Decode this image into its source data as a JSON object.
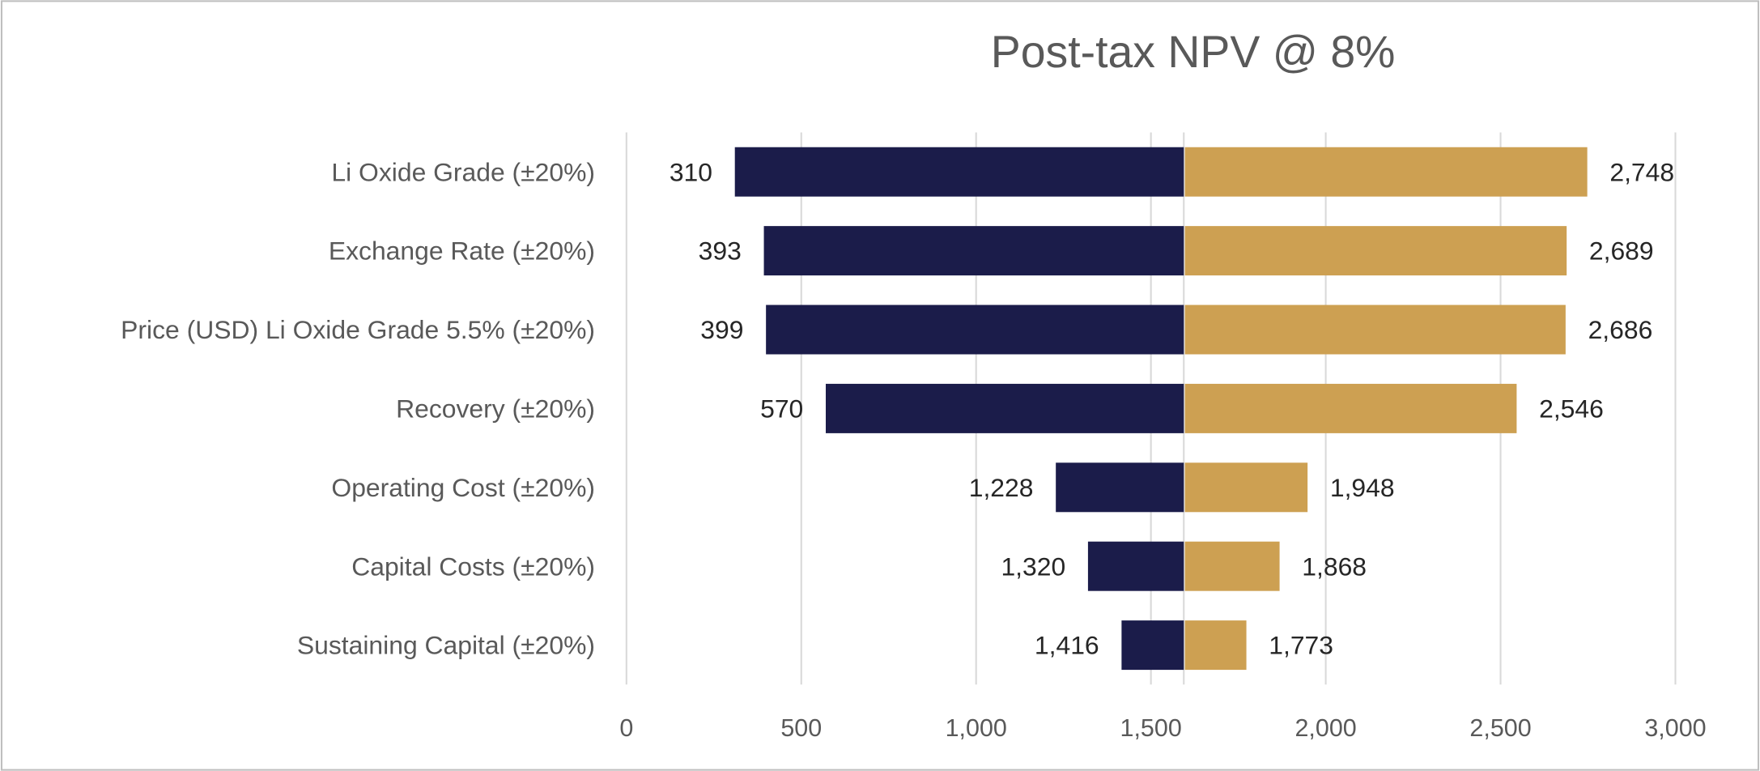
{
  "chart_data": {
    "type": "bar",
    "orientation": "horizontal",
    "style": "tornado",
    "title": "Post-tax NPV @ 8%",
    "base_value": 1594,
    "categories": [
      "Li Oxide Grade  (±20%)",
      "Exchange Rate (±20%)",
      "Price (USD) Li Oxide Grade 5.5%  (±20%)",
      "Recovery (±20%)",
      "Operating Cost (±20%)",
      "Capital Costs (±20%)",
      "Sustaining Capital (±20%)"
    ],
    "series": [
      {
        "values": [
          310,
          393,
          399,
          570,
          1228,
          1320,
          1416
        ],
        "labels": [
          "310",
          "393",
          "399",
          "570",
          "1,228",
          "1,320",
          "1,416"
        ],
        "color": "#1b1c4a"
      },
      {
        "values": [
          2748,
          2689,
          2686,
          2546,
          1948,
          1868,
          1773
        ],
        "labels": [
          "2,748",
          "2,689",
          "2,686",
          "2,546",
          "1,948",
          "1,868",
          "1,773"
        ],
        "color": "#cda052"
      }
    ],
    "xlim": [
      0,
      3000
    ],
    "xticks": [
      0,
      500,
      1000,
      1500,
      2000,
      2500,
      3000
    ],
    "xtick_labels": [
      "0",
      "500",
      "1,000",
      "1,500",
      "2,000",
      "2,500",
      "3,000"
    ],
    "grid": true,
    "legend": "none"
  }
}
